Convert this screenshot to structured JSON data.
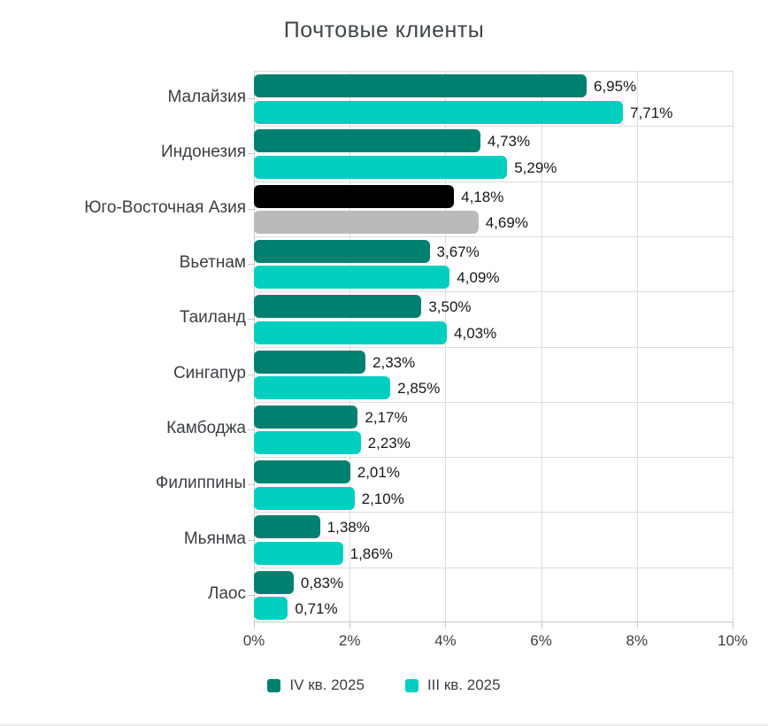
{
  "chart": {
    "title": "Почтовые клиенты"
  },
  "chart_data": {
    "type": "bar",
    "orientation": "horizontal",
    "title": "Почтовые клиенты",
    "categories": [
      "Малайзия",
      "Индонезия",
      "Юго-Восточная Азия",
      "Вьетнам",
      "Таиланд",
      "Сингапур",
      "Камбоджа",
      "Филиппины",
      "Мьянма",
      "Лаос"
    ],
    "series": [
      {
        "name": "IV кв. 2025",
        "color": "#00806e",
        "values": [
          6.95,
          4.73,
          4.18,
          3.67,
          3.5,
          2.33,
          2.17,
          2.01,
          1.38,
          0.83
        ],
        "labels": [
          "6,95%",
          "4,73%",
          "4,18%",
          "3,67%",
          "3,50%",
          "2,33%",
          "2,17%",
          "2,01%",
          "1,38%",
          "0,83%"
        ]
      },
      {
        "name": "III кв. 2025",
        "color": "#00cfc0",
        "values": [
          7.71,
          5.29,
          4.69,
          4.09,
          4.03,
          2.85,
          2.23,
          2.1,
          1.86,
          0.71
        ],
        "labels": [
          "7,71%",
          "5,29%",
          "4,69%",
          "4,09%",
          "4,03%",
          "2,85%",
          "2,23%",
          "2,10%",
          "1,86%",
          "0,71%"
        ]
      }
    ],
    "highlight": {
      "category": "Юго-Восточная Азия",
      "category_index": 2,
      "colors": [
        "#000000",
        "#bababa"
      ]
    },
    "xlim": [
      0,
      10
    ],
    "x_ticks": [
      "0%",
      "2%",
      "4%",
      "6%",
      "8%",
      "10%"
    ],
    "x_tick_values": [
      0,
      2,
      4,
      6,
      8,
      10
    ],
    "grid": true,
    "legend_position": "bottom",
    "legend": [
      {
        "label": "IV кв. 2025",
        "color": "#00806e"
      },
      {
        "label": "III кв. 2025",
        "color": "#00cfc0"
      }
    ]
  }
}
